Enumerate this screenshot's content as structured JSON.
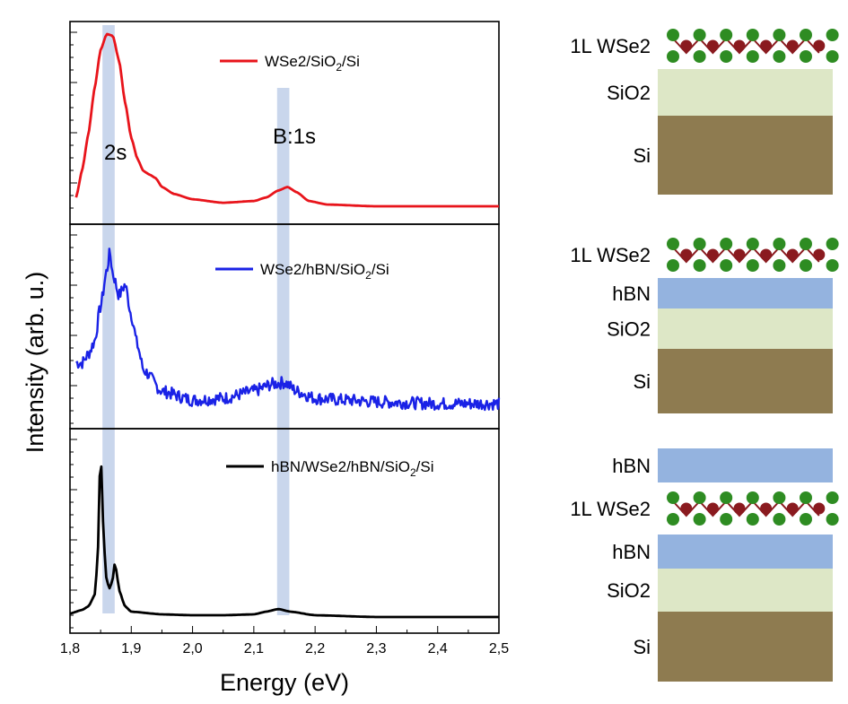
{
  "chart_data": {
    "type": "line",
    "xlabel": "Energy (eV)",
    "ylabel": "Intensity (arb. u.)",
    "xlim": [
      1.8,
      2.5
    ],
    "x_ticks": [
      "1,8",
      "1,9",
      "2,0",
      "2,1",
      "2,2",
      "2,3",
      "2,4",
      "2,5"
    ],
    "highlight_bands": [
      {
        "name": "2s",
        "x_center": 1.863,
        "width": 0.02
      },
      {
        "name": "B:1s",
        "x_center": 2.148,
        "width": 0.02
      }
    ],
    "panels": [
      {
        "name": "WSe2/SiO2/Si",
        "legend": {
          "main": "WSe2/SiO",
          "sub": "2",
          "tail": "/Si"
        },
        "color": "#e8141b",
        "annotations": [
          "2s",
          "B:1s"
        ],
        "x": [
          1.81,
          1.82,
          1.83,
          1.84,
          1.85,
          1.86,
          1.87,
          1.88,
          1.89,
          1.9,
          1.91,
          1.92,
          1.93,
          1.94,
          1.95,
          1.97,
          2.0,
          2.05,
          2.1,
          2.12,
          2.14,
          2.155,
          2.17,
          2.19,
          2.22,
          2.3,
          2.4,
          2.5
        ],
        "y": [
          0.06,
          0.22,
          0.42,
          0.68,
          0.9,
          0.99,
          0.98,
          0.84,
          0.6,
          0.4,
          0.28,
          0.21,
          0.19,
          0.17,
          0.12,
          0.08,
          0.05,
          0.03,
          0.04,
          0.06,
          0.1,
          0.12,
          0.09,
          0.04,
          0.02,
          0.01,
          0.01,
          0.01
        ]
      },
      {
        "name": "WSe2/hBN/SiO2/Si",
        "legend": {
          "main": "WSe2/hBN/SiO",
          "sub": "2",
          "tail": "/Si"
        },
        "color": "#1a22e6",
        "x": [
          1.81,
          1.82,
          1.83,
          1.84,
          1.85,
          1.86,
          1.865,
          1.87,
          1.88,
          1.89,
          1.9,
          1.91,
          1.92,
          1.95,
          2.0,
          2.05,
          2.1,
          2.13,
          2.15,
          2.17,
          2.2,
          2.25,
          2.3,
          2.4,
          2.5
        ],
        "y": [
          0.28,
          0.28,
          0.33,
          0.4,
          0.6,
          0.8,
          0.9,
          0.78,
          0.66,
          0.72,
          0.55,
          0.38,
          0.24,
          0.12,
          0.07,
          0.08,
          0.12,
          0.16,
          0.17,
          0.12,
          0.08,
          0.07,
          0.06,
          0.05,
          0.05
        ],
        "noise": 0.035
      },
      {
        "name": "hBN/WSe2/hBN/SiO2/Si",
        "legend": {
          "main": "hBN/WSe2/hBN/SiO",
          "sub": "2",
          "tail": "/Si"
        },
        "color": "#000000",
        "x": [
          1.8,
          1.82,
          1.83,
          1.84,
          1.845,
          1.848,
          1.85,
          1.852,
          1.855,
          1.86,
          1.865,
          1.87,
          1.873,
          1.876,
          1.88,
          1.89,
          1.9,
          1.95,
          2.0,
          2.05,
          2.1,
          2.12,
          2.14,
          2.16,
          2.2,
          2.3,
          2.4,
          2.5
        ],
        "y": [
          0.02,
          0.04,
          0.06,
          0.12,
          0.3,
          0.75,
          0.99,
          0.75,
          0.42,
          0.2,
          0.16,
          0.22,
          0.3,
          0.26,
          0.15,
          0.06,
          0.03,
          0.015,
          0.01,
          0.01,
          0.015,
          0.03,
          0.045,
          0.03,
          0.01,
          0.0,
          0.0,
          0.0
        ]
      }
    ]
  },
  "schematics": [
    {
      "name": "stack-1",
      "layers": [
        {
          "label": "1L WSe2",
          "type": "monolayer"
        },
        {
          "label": "SiO2",
          "type": "sio2"
        },
        {
          "label": "Si",
          "type": "si"
        }
      ]
    },
    {
      "name": "stack-2",
      "layers": [
        {
          "label": "1L WSe2",
          "type": "monolayer"
        },
        {
          "label": "hBN",
          "type": "hbn"
        },
        {
          "label": "SiO2",
          "type": "sio2"
        },
        {
          "label": "Si",
          "type": "si"
        }
      ]
    },
    {
      "name": "stack-3",
      "layers": [
        {
          "label": "hBN",
          "type": "hbn"
        },
        {
          "label": "1L WSe2",
          "type": "monolayer"
        },
        {
          "label": "hBN",
          "type": "hbn"
        },
        {
          "label": "SiO2",
          "type": "sio2"
        },
        {
          "label": "Si",
          "type": "si"
        }
      ]
    }
  ],
  "colors": {
    "band": "#9db4dc",
    "hbn": "#94b3df",
    "sio2": "#dde7c6",
    "si": "#8e7b50",
    "se_atom": "#2e8c22",
    "w_atom": "#8a1a1f"
  }
}
